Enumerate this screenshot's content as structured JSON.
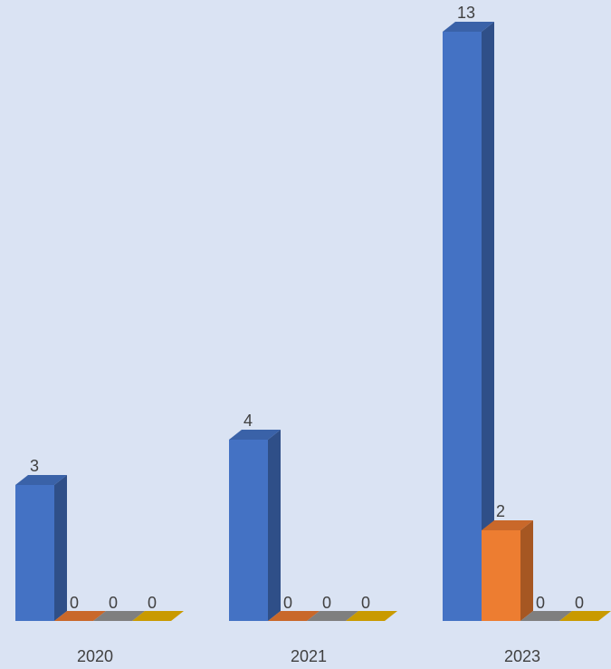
{
  "chart_data": {
    "type": "bar",
    "categories": [
      "2020",
      "2021",
      "2023"
    ],
    "series": [
      {
        "values": [
          3,
          4,
          13
        ],
        "color": "#4472c4",
        "side_color": "#2f4f88",
        "top_color": "#3a62a8"
      },
      {
        "values": [
          0,
          0,
          2
        ],
        "color": "#ed7d31",
        "side_color": "#a65722",
        "top_color": "#c9682a"
      },
      {
        "values": [
          0,
          0,
          0
        ],
        "color": "#7f7f7f",
        "side_color": "#595959",
        "top_color": "#7f7f7f"
      },
      {
        "values": [
          0,
          0,
          0
        ],
        "color": "#ffc000",
        "side_color": "#b38600",
        "top_color": "#c99a00"
      }
    ],
    "data_labels": [
      [
        "3",
        "4",
        "13"
      ],
      [
        "0",
        "0",
        "2"
      ],
      [
        "0",
        "0",
        "0"
      ],
      [
        "0",
        "0",
        "0"
      ]
    ],
    "title": "",
    "xlabel": "",
    "ylabel": "",
    "ylim": [
      0,
      13
    ],
    "grid": false,
    "legend": "none",
    "style": "3d-clustered-column",
    "background_color": "#dae3f3"
  }
}
